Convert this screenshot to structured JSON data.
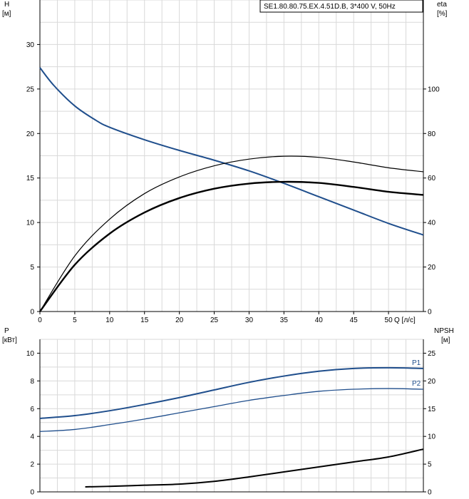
{
  "chart_data": [
    {
      "type": "line",
      "title": "SE1.80.80.75.EX.4.51D.B, 3*400 V, 50Hz",
      "xlabel": "Q [л/с]",
      "xlim": [
        0,
        55
      ],
      "xticks": [
        0,
        5,
        10,
        15,
        20,
        25,
        30,
        35,
        40,
        45,
        50
      ],
      "left_axis": {
        "label_top": "H",
        "label_unit": "[м]",
        "lim": [
          0,
          35
        ],
        "ticks": [
          0,
          5,
          10,
          15,
          20,
          25,
          30
        ]
      },
      "right_axis": {
        "label_top": "eta",
        "label_unit": "[%]",
        "lim": [
          0,
          140
        ],
        "ticks": [
          0,
          20,
          40,
          60,
          80,
          100
        ]
      },
      "grid": true,
      "series": [
        {
          "axis": "left",
          "color": "#1f4e8c",
          "x": [
            0,
            2,
            5,
            8,
            10,
            15,
            20,
            25,
            30,
            35,
            40,
            45,
            50,
            55
          ],
          "values": [
            27.4,
            25.4,
            23.1,
            21.5,
            20.7,
            19.3,
            18.1,
            17.0,
            15.8,
            14.4,
            12.9,
            11.4,
            9.9,
            8.6
          ]
        },
        {
          "axis": "right",
          "color": "#000000",
          "x": [
            0,
            5,
            10,
            15,
            20,
            25,
            30,
            35,
            40,
            45,
            50,
            55
          ],
          "values": [
            0,
            25,
            41.5,
            53,
            60.5,
            65.5,
            68.5,
            69.8,
            69.3,
            67.2,
            64.6,
            62.8
          ]
        },
        {
          "axis": "right",
          "color": "#000000",
          "x": [
            0,
            5,
            10,
            15,
            20,
            25,
            30,
            35,
            40,
            45,
            50,
            55
          ],
          "values": [
            0,
            21,
            35,
            44.5,
            51,
            55.2,
            57.5,
            58.3,
            57.8,
            56,
            53.8,
            52.4
          ]
        }
      ]
    },
    {
      "type": "line",
      "xlim": [
        0,
        55
      ],
      "left_axis": {
        "label_top": "P",
        "label_unit": "[кВт]",
        "lim": [
          0,
          11
        ],
        "ticks": [
          0,
          2,
          4,
          6,
          8,
          10
        ]
      },
      "right_axis": {
        "label_top": "NPSH",
        "label_unit": "[м]",
        "lim": [
          0,
          27.5
        ],
        "ticks": [
          0,
          5,
          10,
          15,
          20,
          25
        ]
      },
      "grid": true,
      "series": [
        {
          "name": "P1",
          "axis": "left",
          "color": "#1f4e8c",
          "x": [
            0,
            5,
            10,
            15,
            20,
            25,
            30,
            35,
            40,
            45,
            50,
            55
          ],
          "values": [
            5.3,
            5.5,
            5.85,
            6.3,
            6.8,
            7.35,
            7.9,
            8.35,
            8.7,
            8.9,
            8.95,
            8.9
          ]
        },
        {
          "name": "P2",
          "axis": "left",
          "color": "#1f4e8c",
          "x": [
            0,
            5,
            10,
            15,
            20,
            25,
            30,
            35,
            40,
            45,
            50,
            55
          ],
          "values": [
            4.35,
            4.5,
            4.85,
            5.25,
            5.7,
            6.15,
            6.6,
            6.95,
            7.25,
            7.4,
            7.45,
            7.4
          ]
        },
        {
          "axis": "right",
          "color": "#000000",
          "x": [
            6.5,
            10,
            15,
            20,
            25,
            30,
            35,
            40,
            45,
            50,
            55
          ],
          "values": [
            0.9,
            1.0,
            1.2,
            1.4,
            1.9,
            2.7,
            3.6,
            4.5,
            5.4,
            6.3,
            7.7
          ]
        }
      ]
    }
  ]
}
